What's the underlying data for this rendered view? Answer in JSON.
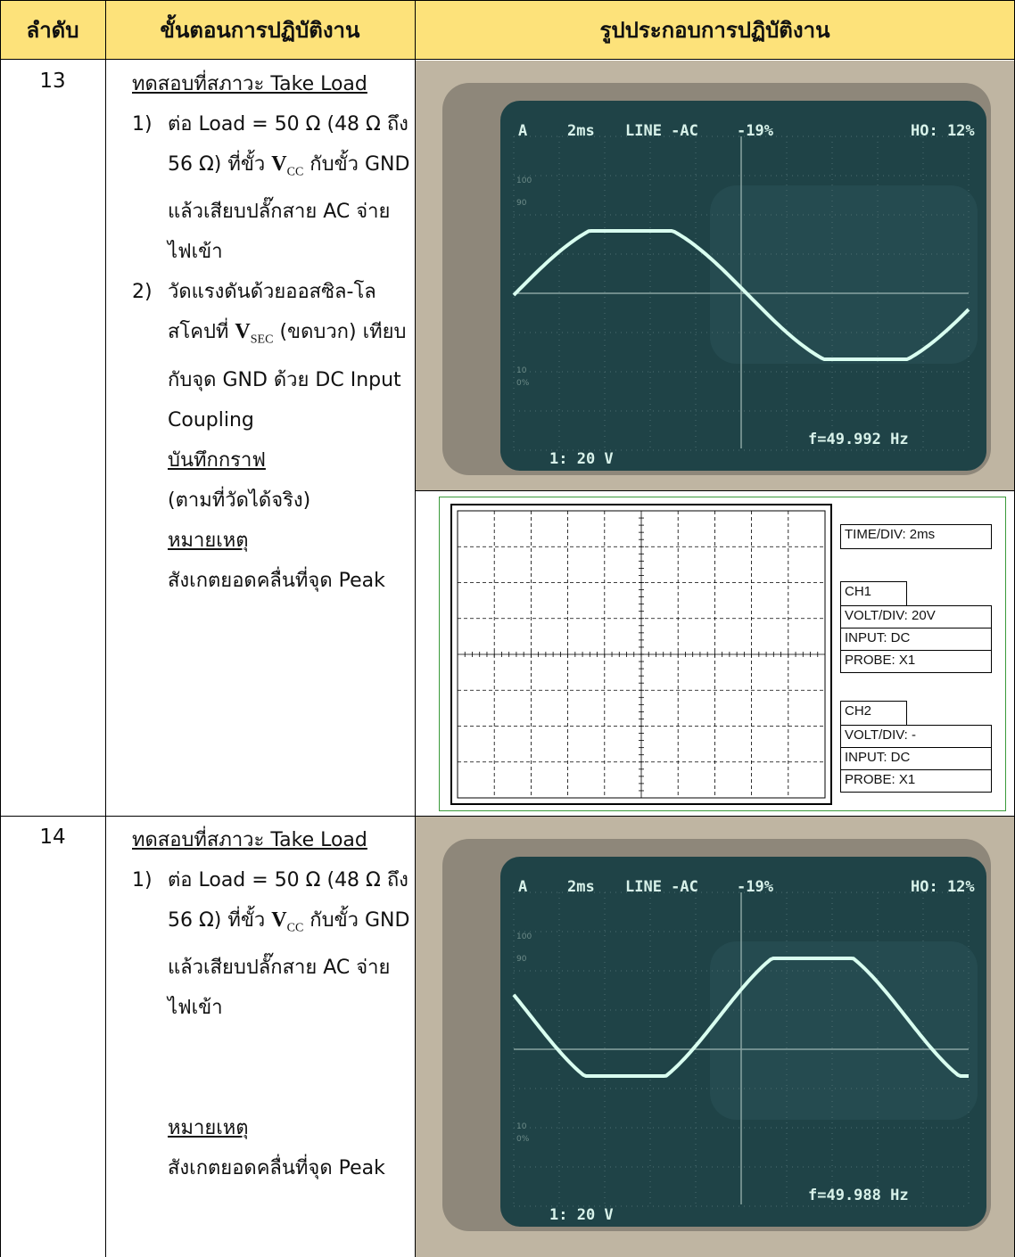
{
  "header": {
    "number": "ลำดับ",
    "steps": "ขั้นตอนการปฏิบัติงาน",
    "figure": "รูปประกอบการปฏิบัติงาน"
  },
  "rows": [
    {
      "number": "13",
      "heading": "ทดสอบที่สภาวะ Take Load",
      "step1": {
        "marker": "1)",
        "a": "ต่อ Load = 50 Ω (48 Ω ถึง 56 Ω) ที่ขั้ว ",
        "v": "V",
        "sub": "CC",
        "b": " กับขั้ว GND แล้วเสียบปลั๊กสาย AC จ่ายไฟเข้า"
      },
      "step2": {
        "marker": "2)",
        "a": "วัดแรงดันด้วยออสซิล-โลสโคปที่ ",
        "v": "V",
        "sub": "SEC",
        "b": " (ขดบวก) เทียบกับจุด GND ด้วย DC Input Coupling"
      },
      "record": "บันทึกกราฟ",
      "record_note": "(ตามที่วัดได้จริง)",
      "note": "หมายเหตุ",
      "note_text": "สังเกตยอดคลื่นที่จุด Peak",
      "scope": {
        "top": [
          "A",
          "2ms",
          "LINE -AC",
          "-19%",
          "HO: 12%"
        ],
        "channel": "1: 20 V",
        "freq": "f=49.992 Hz",
        "scale": [
          "100",
          "90",
          "10",
          "0%"
        ]
      },
      "settings": {
        "time": "TIME/DIV: 2ms",
        "ch1": {
          "name": "CH1",
          "volt": "VOLT/DIV: 20V",
          "input": "INPUT: DC",
          "probe": "PROBE: X1"
        },
        "ch2": {
          "name": "CH2",
          "volt": "VOLT/DIV: -",
          "input": "INPUT: DC",
          "probe": "PROBE: X1"
        }
      }
    },
    {
      "number": "14",
      "heading": "ทดสอบที่สภาวะ Take Load",
      "step1": {
        "marker": "1)",
        "a": "ต่อ Load = 50 Ω (48 Ω ถึง 56 Ω) ที่ขั้ว ",
        "v": "V",
        "sub": "CC",
        "b": " กับขั้ว GND แล้วเสียบปลั๊กสาย AC จ่ายไฟเข้า"
      },
      "note": "หมายเหตุ",
      "note_text": "สังเกตยอดคลื่นที่จุด Peak",
      "scope": {
        "top": [
          "A",
          "2ms",
          "LINE -AC",
          "-19%",
          "HO: 12%"
        ],
        "channel": "1: 20 V",
        "freq": "f=49.988 Hz",
        "scale": [
          "100",
          "90",
          "10",
          "0%"
        ]
      }
    }
  ]
}
